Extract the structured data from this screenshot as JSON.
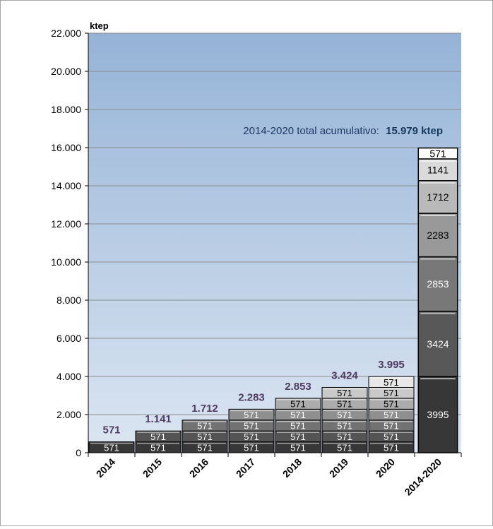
{
  "chart_data": {
    "type": "bar",
    "stacked": true,
    "ylabel": "ktep",
    "ylim": [
      0,
      22000
    ],
    "yticks": [
      0,
      2000,
      4000,
      6000,
      8000,
      10000,
      12000,
      14000,
      16000,
      18000,
      20000,
      22000
    ],
    "ytick_labels": [
      "0",
      "2.000",
      "4.000",
      "6.000",
      "8.000",
      "10.000",
      "12.000",
      "14.000",
      "16.000",
      "18.000",
      "20.000",
      "22.000"
    ],
    "grid": true,
    "categories": [
      "2014",
      "2015",
      "2016",
      "2017",
      "2018",
      "2019",
      "2020",
      "2014-2020"
    ],
    "annual": {
      "segment_value": 571,
      "segment_label": "571",
      "segment_counts": [
        1,
        2,
        3,
        4,
        5,
        6,
        7
      ],
      "totals": [
        571,
        1141,
        1712,
        2283,
        2853,
        3424,
        3995
      ],
      "total_labels": [
        "571",
        "1.141",
        "1.712",
        "2.283",
        "2.853",
        "3.424",
        "3.995"
      ]
    },
    "cumulative": {
      "segments": [
        3995,
        3424,
        2853,
        2283,
        1712,
        1141,
        571
      ],
      "segment_labels": [
        "3995",
        "3424",
        "2853",
        "2283",
        "1712",
        "1141",
        "571"
      ],
      "total": 15979
    },
    "annotation": {
      "text": "2014-2020 total acumulativo:",
      "value": "15.979 ktep"
    },
    "colors": {
      "plot_top": "#95b3d7",
      "plot_bottom": "#dce6f2",
      "label_purple": "#4f3b62",
      "annotation_text": "#1f3864",
      "annotation_bold": "#17375e"
    }
  }
}
